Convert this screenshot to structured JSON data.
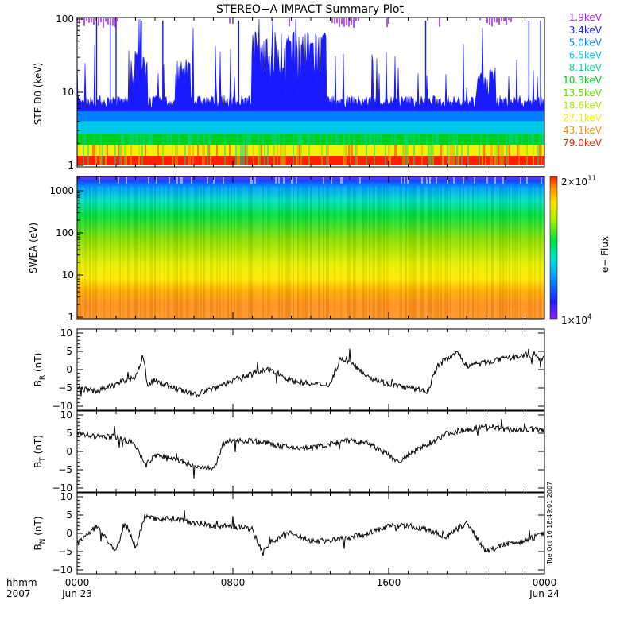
{
  "title": "STEREO−A IMPACT Summary Plot",
  "footer": {
    "row1": "hhmm",
    "row2": "2007",
    "xticks": [
      "0000",
      "0800",
      "1600",
      "0000"
    ],
    "xdates": [
      "Jun 23",
      "Jun 24"
    ]
  },
  "timestamp": "Tue Oct 16 18:49:01 2007",
  "colorbar": {
    "label": "e− Flux",
    "max_label": "2×10",
    "max_exp": "11",
    "min_label": "1×10",
    "min_exp": "4"
  },
  "chart_data": [
    {
      "type": "line",
      "panel": "ste",
      "ylabel": "STE D0 (keV)",
      "yscale": "log",
      "ylim": [
        1,
        100
      ],
      "yticks": [
        "1",
        "10",
        "100"
      ],
      "xlim_hours": [
        0,
        24
      ],
      "legend": [
        {
          "name": "1.9keV",
          "color": "#a020f0"
        },
        {
          "name": "3.4keV",
          "color": "#1a1aff"
        },
        {
          "name": "5.0keV",
          "color": "#0080ff"
        },
        {
          "name": "6.5keV",
          "color": "#00c8e8"
        },
        {
          "name": "8.1keV",
          "color": "#00d8a0"
        },
        {
          "name": "10.3keV",
          "color": "#00d020"
        },
        {
          "name": "13.5keV",
          "color": "#60e000"
        },
        {
          "name": "18.6keV",
          "color": "#b0e800"
        },
        {
          "name": "27.1keV",
          "color": "#f0f000"
        },
        {
          "name": "43.1keV",
          "color": "#ff9000"
        },
        {
          "name": "79.0keV",
          "color": "#ff2000"
        }
      ]
    },
    {
      "type": "heatmap",
      "panel": "swea",
      "ylabel": "SWEA (eV)",
      "yscale": "log",
      "ylim": [
        1,
        2000
      ],
      "yticks": [
        "1",
        "10",
        "100",
        "1000"
      ],
      "xlim_hours": [
        0,
        24
      ],
      "zscale": "log",
      "zlim": [
        10000,
        200000000000
      ]
    },
    {
      "type": "line",
      "panel": "br",
      "ylabel": "B",
      "ylabel_sub": "R",
      "ylabel_unit": " (nT)",
      "ylim": [
        -10,
        10
      ],
      "yticks": [
        "10",
        "5",
        "0",
        "−5",
        "−10"
      ],
      "x_hours": [
        0,
        1,
        2,
        3,
        3.4,
        3.6,
        4,
        5,
        6,
        7,
        8,
        9,
        10,
        11,
        12,
        13,
        13.5,
        14,
        15,
        16,
        17,
        18,
        18.5,
        19,
        19.5,
        20,
        21,
        22,
        23,
        24
      ],
      "values": [
        -5,
        -6,
        -4,
        -2,
        4,
        -4,
        -3,
        -5,
        -7,
        -5,
        -3,
        -1,
        0,
        -3,
        -4,
        -4,
        3,
        2,
        -2,
        -4,
        -5,
        -6,
        1,
        3,
        5,
        1,
        2,
        3,
        4,
        3
      ]
    },
    {
      "type": "line",
      "panel": "bt",
      "ylabel": "B",
      "ylabel_sub": "T",
      "ylabel_unit": " (nT)",
      "ylim": [
        -10,
        10
      ],
      "yticks": [
        "10",
        "5",
        "0",
        "−5",
        "−10"
      ],
      "x_hours": [
        0,
        1,
        2,
        3,
        3.5,
        4,
        5,
        6,
        7,
        7.5,
        8,
        9,
        10,
        11,
        12,
        13,
        14,
        15,
        16,
        16.5,
        17,
        18,
        19,
        20,
        21,
        22,
        23,
        24
      ],
      "values": [
        5,
        4,
        4,
        2,
        -4,
        -1,
        -2,
        -4,
        -5,
        2,
        3,
        3,
        2,
        1,
        1,
        2,
        3,
        2,
        -1,
        -3,
        -1,
        2,
        5,
        6,
        7,
        6,
        6,
        6
      ]
    },
    {
      "type": "line",
      "panel": "bn",
      "ylabel": "B",
      "ylabel_sub": "N",
      "ylabel_unit": " (nT)",
      "ylim": [
        -10,
        10
      ],
      "yticks": [
        "10",
        "5",
        "0",
        "−5",
        "−10"
      ],
      "x_hours": [
        0,
        1,
        2,
        2.5,
        3,
        3.5,
        4,
        5,
        6,
        7,
        8,
        9,
        9.5,
        10,
        11,
        12,
        13,
        14,
        15,
        16,
        17,
        18,
        19,
        20,
        21,
        22,
        23,
        24
      ],
      "values": [
        -3,
        2,
        -5,
        3,
        -4,
        5,
        4,
        4,
        3,
        2,
        2,
        1,
        -5,
        -2,
        0,
        -2,
        -2,
        -1,
        0,
        2,
        2,
        1,
        -1,
        3,
        -5,
        -3,
        -2,
        0
      ]
    }
  ]
}
